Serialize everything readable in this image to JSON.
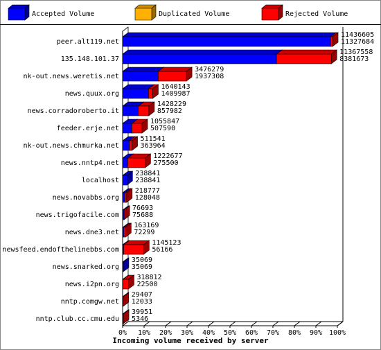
{
  "chart_data": {
    "type": "bar3d",
    "x_label": "Incoming volume received by server",
    "series": [
      {
        "name": "Accepted Volume",
        "color": "#0000ff"
      },
      {
        "name": "Duplicated Volume",
        "color": "#ffb000"
      },
      {
        "name": "Rejected Volume",
        "color": "#ff0000"
      }
    ],
    "categories": [
      "peer.alt119.net",
      "135.148.101.37",
      "nk-out.news.weretis.net",
      "news.quux.org",
      "news.corradoroberto.it",
      "feeder.erje.net",
      "nk-out.news.chmurka.net",
      "news.nntp4.net",
      "localhost",
      "news.novabbs.org",
      "news.trigofacile.com",
      "news.dne3.net",
      "newsfeed.endofthelinebbs.com",
      "news.snarked.org",
      "news.i2pn.org",
      "nntp.comgw.net",
      "nntp.club.cc.cmu.edu"
    ],
    "total": [
      11436605,
      11367558,
      3476279,
      1640143,
      1428229,
      1055847,
      511541,
      1222677,
      238841,
      218777,
      76693,
      163169,
      1145123,
      35069,
      318812,
      29407,
      39951
    ],
    "accepted": [
      11327684,
      8381673,
      1937308,
      1409987,
      857982,
      507590,
      363964,
      275500,
      238841,
      128048,
      75688,
      72299,
      56166,
      35069,
      22500,
      12033,
      5346
    ],
    "xlim": [
      0,
      11700000
    ],
    "xticks": [
      {
        "value": 0,
        "label": "0%"
      },
      {
        "value": 1170000,
        "label": "10%"
      },
      {
        "value": 2340000,
        "label": "20%"
      },
      {
        "value": 3510000,
        "label": "30%"
      },
      {
        "value": 4680000,
        "label": "40%"
      },
      {
        "value": 5850000,
        "label": "50%"
      },
      {
        "value": 7020000,
        "label": "60%"
      },
      {
        "value": 8190000,
        "label": "70%"
      },
      {
        "value": 9360000,
        "label": "80%"
      },
      {
        "value": 10530000,
        "label": "90%"
      },
      {
        "value": 11700000,
        "label": "100%"
      }
    ]
  }
}
